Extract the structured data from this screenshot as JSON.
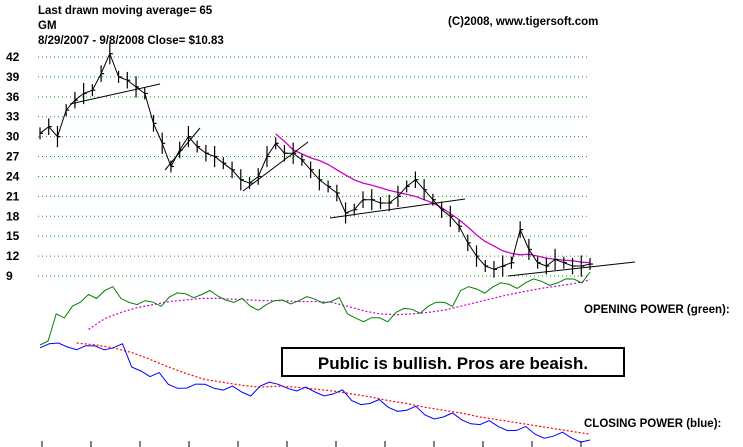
{
  "header": {
    "line1": "Last drawn moving average= 65",
    "line2": "GM",
    "line3": "8/29/2007 - 9/8/2008    Close= $10.83",
    "copyright": "(C)2008, www.tigersoft.com"
  },
  "labels": {
    "opening_power": "OPENING POWER (green):",
    "closing_power": "CLOSING POWER (blue):",
    "callout": "Public is bullish.  Pros are beaish."
  },
  "colors": {
    "price": "#000000",
    "moving_average": "#cc00cc",
    "opening_power": "#008000",
    "opening_power_ma": "#cc00cc",
    "closing_power": "#0000ff",
    "closing_power_ma": "#ff0000",
    "grid": "#00aa00"
  },
  "chart_data": {
    "type": "line",
    "title": "GM",
    "subtitle": "8/29/2007 - 9/8/2008    Close= $10.83",
    "ylim": [
      9,
      42
    ],
    "yticks": [
      42,
      39,
      36,
      33,
      30,
      27,
      24,
      21,
      18,
      15,
      12,
      9
    ],
    "grid": true,
    "x": [
      0,
      4,
      8,
      12,
      16,
      20,
      24,
      28,
      32,
      36,
      40,
      44,
      48,
      52,
      56,
      60,
      64,
      68,
      72,
      76,
      80,
      84,
      88,
      92,
      96,
      100,
      104,
      108,
      112,
      116,
      120,
      124,
      128,
      132,
      136,
      140,
      144,
      148,
      152,
      156,
      160,
      164,
      168,
      172,
      176,
      180,
      184,
      188,
      192,
      196,
      200,
      204,
      208,
      212,
      216,
      220,
      224,
      228,
      232,
      236,
      240,
      244,
      248,
      252
    ],
    "series": [
      {
        "name": "Close",
        "values": [
          30.5,
          31.5,
          30,
          34,
          35.5,
          36.5,
          37,
          39.5,
          42.5,
          39,
          38.5,
          37.5,
          36.5,
          32,
          29,
          25.5,
          28,
          30,
          28.5,
          27.5,
          27,
          26,
          25,
          23.5,
          23,
          24,
          27,
          29,
          27.5,
          27.5,
          26.5,
          25,
          23.5,
          22.5,
          21.5,
          18.5,
          19,
          20.5,
          20.5,
          20,
          20,
          21,
          22.5,
          23.5,
          22,
          20.5,
          19,
          18,
          16.5,
          14,
          12,
          10.5,
          10,
          10.5,
          11,
          16,
          13,
          11,
          10.5,
          11.5,
          11,
          10.5,
          10.5,
          10.8
        ]
      },
      {
        "name": "Moving average",
        "values": [
          null,
          null,
          null,
          null,
          null,
          null,
          null,
          null,
          null,
          null,
          null,
          null,
          null,
          null,
          null,
          null,
          null,
          null,
          null,
          null,
          null,
          null,
          null,
          null,
          null,
          null,
          null,
          30.4,
          29.3,
          28,
          27.4,
          26.8,
          26.4,
          25.8,
          25,
          24.2,
          23.5,
          23,
          22.7,
          22.3,
          21.9,
          21.6,
          21.3,
          21,
          20.5,
          20,
          19.3,
          18.4,
          17.5,
          16.4,
          15.2,
          14.2,
          13.5,
          12.8,
          12.4,
          12.2,
          12.3,
          12,
          11.7,
          11.5,
          11.4,
          11.3,
          11.1,
          11
        ]
      }
    ],
    "indicators": [
      {
        "name": "OPENING POWER (green):",
        "line": [
          -10,
          30,
          40,
          55,
          60,
          50,
          42,
          45,
          52,
          56,
          55,
          53,
          45,
          40,
          42,
          48,
          47,
          49,
          46,
          30,
          20,
          25,
          32,
          36,
          40,
          45,
          60,
          62,
          65,
          68,
          70,
          72,
          70,
          75,
          84
        ],
        "ma": [
          null,
          null,
          null,
          10,
          24,
          32,
          38,
          42,
          46,
          48,
          50,
          50,
          49,
          48,
          47,
          47,
          46,
          46,
          45,
          40,
          34,
          30,
          29,
          30,
          32,
          35,
          40,
          45,
          50,
          55,
          59,
          63,
          66,
          69,
          74
        ]
      },
      {
        "name": "CLOSING POWER (blue):",
        "line": [
          0,
          5,
          -2,
          2,
          0,
          -20,
          -30,
          -38,
          -42,
          -38,
          -44,
          -46,
          -40,
          -38,
          -45,
          -46,
          -48,
          -55,
          -58,
          -62,
          -65,
          -70,
          -72,
          -75,
          -80,
          -82,
          -86,
          -90,
          -92,
          -94,
          -96
        ],
        "ma": [
          null,
          null,
          5,
          3,
          0,
          -5,
          -12,
          -20,
          -27,
          -33,
          -36,
          -39,
          -41,
          -40,
          -41,
          -43,
          -45,
          -48,
          -51,
          -55,
          -58,
          -62,
          -65,
          -68,
          -72,
          -75,
          -78,
          -81,
          -84,
          -87,
          -90
        ]
      }
    ]
  }
}
